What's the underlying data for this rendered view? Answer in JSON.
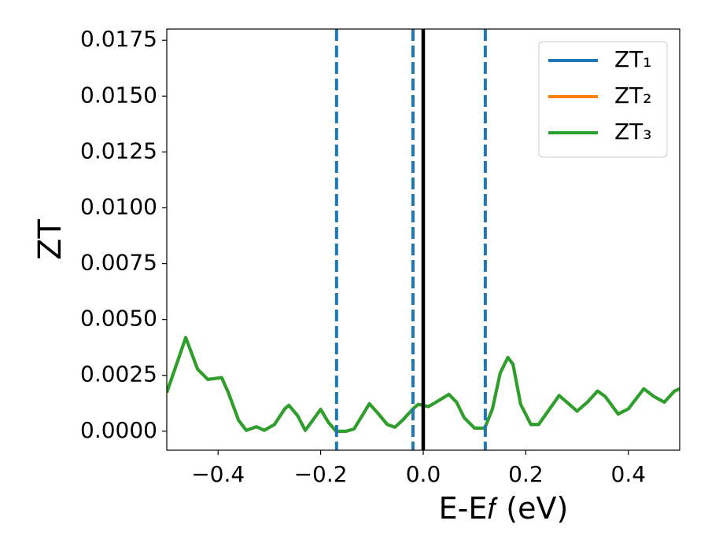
{
  "chart_data": {
    "type": "line",
    "xlabel": "E-E𝑓 (eV)",
    "ylabel": "ZT",
    "x": [
      -0.5,
      -0.463,
      -0.44,
      -0.42,
      -0.393,
      -0.38,
      -0.36,
      -0.345,
      -0.325,
      -0.31,
      -0.29,
      -0.27,
      -0.262,
      -0.245,
      -0.23,
      -0.215,
      -0.2,
      -0.185,
      -0.17,
      -0.15,
      -0.135,
      -0.115,
      -0.105,
      -0.09,
      -0.07,
      -0.055,
      -0.04,
      -0.02,
      -0.01,
      0.0,
      0.01,
      0.02,
      0.035,
      0.05,
      0.065,
      0.08,
      0.1,
      0.12,
      0.135,
      0.15,
      0.165,
      0.175,
      0.19,
      0.21,
      0.225,
      0.245,
      0.265,
      0.28,
      0.3,
      0.32,
      0.34,
      0.355,
      0.38,
      0.4,
      0.43,
      0.45,
      0.47,
      0.49,
      0.5
    ],
    "series": [
      {
        "name": "ZT₁",
        "color": "#1f77b4",
        "values": [
          0.00173,
          0.00419,
          0.00278,
          0.00232,
          0.0024,
          0.00173,
          0.00049,
          4e-05,
          0.0002,
          4e-05,
          0.0003,
          0.001,
          0.00116,
          0.0007,
          4e-05,
          0.0005,
          0.00098,
          0.0004,
          0.0,
          0.0,
          0.0001,
          0.00085,
          0.00123,
          0.00085,
          0.0003,
          0.00018,
          0.0005,
          0.001,
          0.0012,
          0.00116,
          0.0011,
          0.00123,
          0.00144,
          0.00165,
          0.0013,
          0.0006,
          0.00014,
          0.00014,
          0.001,
          0.0026,
          0.0033,
          0.003,
          0.0012,
          0.0003,
          0.0003,
          0.00095,
          0.0016,
          0.0013,
          0.0009,
          0.0013,
          0.0018,
          0.00155,
          0.00077,
          0.001,
          0.0019,
          0.00155,
          0.0013,
          0.0018,
          0.0019
        ]
      },
      {
        "name": "ZT₂",
        "color": "#ff7f0e",
        "values": [
          0.00173,
          0.00419,
          0.00278,
          0.00232,
          0.0024,
          0.00173,
          0.00049,
          4e-05,
          0.0002,
          4e-05,
          0.0003,
          0.001,
          0.00116,
          0.0007,
          4e-05,
          0.0005,
          0.00098,
          0.0004,
          0.0,
          0.0,
          0.0001,
          0.00085,
          0.00123,
          0.00085,
          0.0003,
          0.00018,
          0.0005,
          0.001,
          0.0012,
          0.00116,
          0.0011,
          0.00123,
          0.00144,
          0.00165,
          0.0013,
          0.0006,
          0.00014,
          0.00014,
          0.001,
          0.0026,
          0.0033,
          0.003,
          0.0012,
          0.0003,
          0.0003,
          0.00095,
          0.0016,
          0.0013,
          0.0009,
          0.0013,
          0.0018,
          0.00155,
          0.00077,
          0.001,
          0.0019,
          0.00155,
          0.0013,
          0.0018,
          0.0019
        ]
      },
      {
        "name": "ZT₃",
        "color": "#2ca02c",
        "values": [
          0.00173,
          0.00419,
          0.00278,
          0.00232,
          0.0024,
          0.00173,
          0.00049,
          4e-05,
          0.0002,
          4e-05,
          0.0003,
          0.001,
          0.00116,
          0.0007,
          4e-05,
          0.0005,
          0.00098,
          0.0004,
          0.0,
          0.0,
          0.0001,
          0.00085,
          0.00123,
          0.00085,
          0.0003,
          0.00018,
          0.0005,
          0.001,
          0.0012,
          0.00116,
          0.0011,
          0.00123,
          0.00144,
          0.00165,
          0.0013,
          0.0006,
          0.00014,
          0.00014,
          0.001,
          0.0026,
          0.0033,
          0.003,
          0.0012,
          0.0003,
          0.0003,
          0.00095,
          0.0016,
          0.0013,
          0.0009,
          0.0013,
          0.0018,
          0.00155,
          0.00077,
          0.001,
          0.0019,
          0.00155,
          0.0013,
          0.0018,
          0.0019
        ]
      }
    ],
    "vlines": [
      {
        "x": -0.169,
        "color": "#1f77b4",
        "style": "dashed"
      },
      {
        "x": -0.02,
        "color": "#1f77b4",
        "style": "dashed"
      },
      {
        "x": 0.121,
        "color": "#1f77b4",
        "style": "dashed"
      },
      {
        "x": 0,
        "color": "#000000",
        "style": "solid"
      }
    ],
    "xlim": [
      -0.5,
      0.5
    ],
    "xticks": [
      {
        "value": -0.4,
        "label": "−0.4"
      },
      {
        "value": -0.2,
        "label": "−0.2"
      },
      {
        "value": 0,
        "label": "0.0"
      },
      0.2,
      0.4
    ],
    "ylim": [
      -0.00085,
      0.018
    ],
    "yticks": [
      {
        "value": 0,
        "label": "0.0000"
      },
      0.0025,
      {
        "value": 0.005,
        "label": "0.0050"
      },
      0.0075,
      {
        "value": 0.01,
        "label": "0.0100"
      },
      0.0125,
      {
        "value": 0.015,
        "label": "0.0150"
      },
      0.0175
    ],
    "legend": "upper right",
    "grid": false
  }
}
